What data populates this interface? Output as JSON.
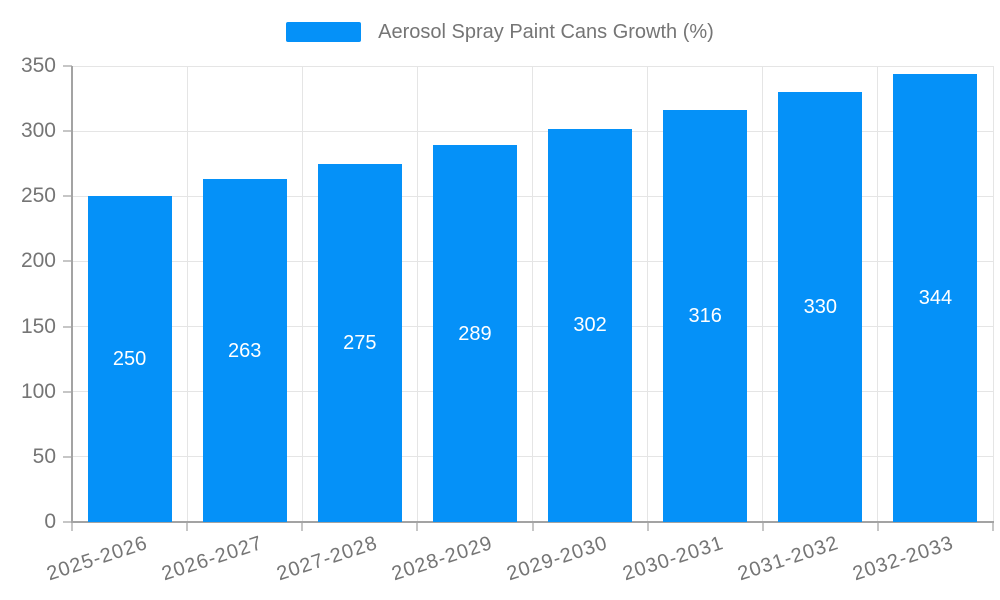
{
  "legend": {
    "label": "Aerosol Spray Paint Cans Growth (%)",
    "swatch_color": "#0591f8"
  },
  "chart_data": {
    "type": "bar",
    "title": "Aerosol Spray Paint Cans Growth (%)",
    "categories": [
      "2025-2026",
      "2026-2027",
      "2027-2028",
      "2028-2029",
      "2029-2030",
      "2030-2031",
      "2031-2032",
      "2032-2033"
    ],
    "values": [
      250,
      263,
      275,
      289,
      302,
      316,
      330,
      344
    ],
    "xlabel": "",
    "ylabel": "",
    "ylim": [
      0,
      350
    ],
    "ytick_step": 50,
    "yticks": [
      0,
      50,
      100,
      150,
      200,
      250,
      300,
      350
    ],
    "grid": true,
    "legend_position": "top-center",
    "value_labels": "inside-center",
    "colors": {
      "bar": "#0591f8",
      "tick_text": "#757575",
      "gridline": "#e5e5e5",
      "axis_line": "#a3a3a3",
      "value_label_text": "#ffffff"
    }
  }
}
